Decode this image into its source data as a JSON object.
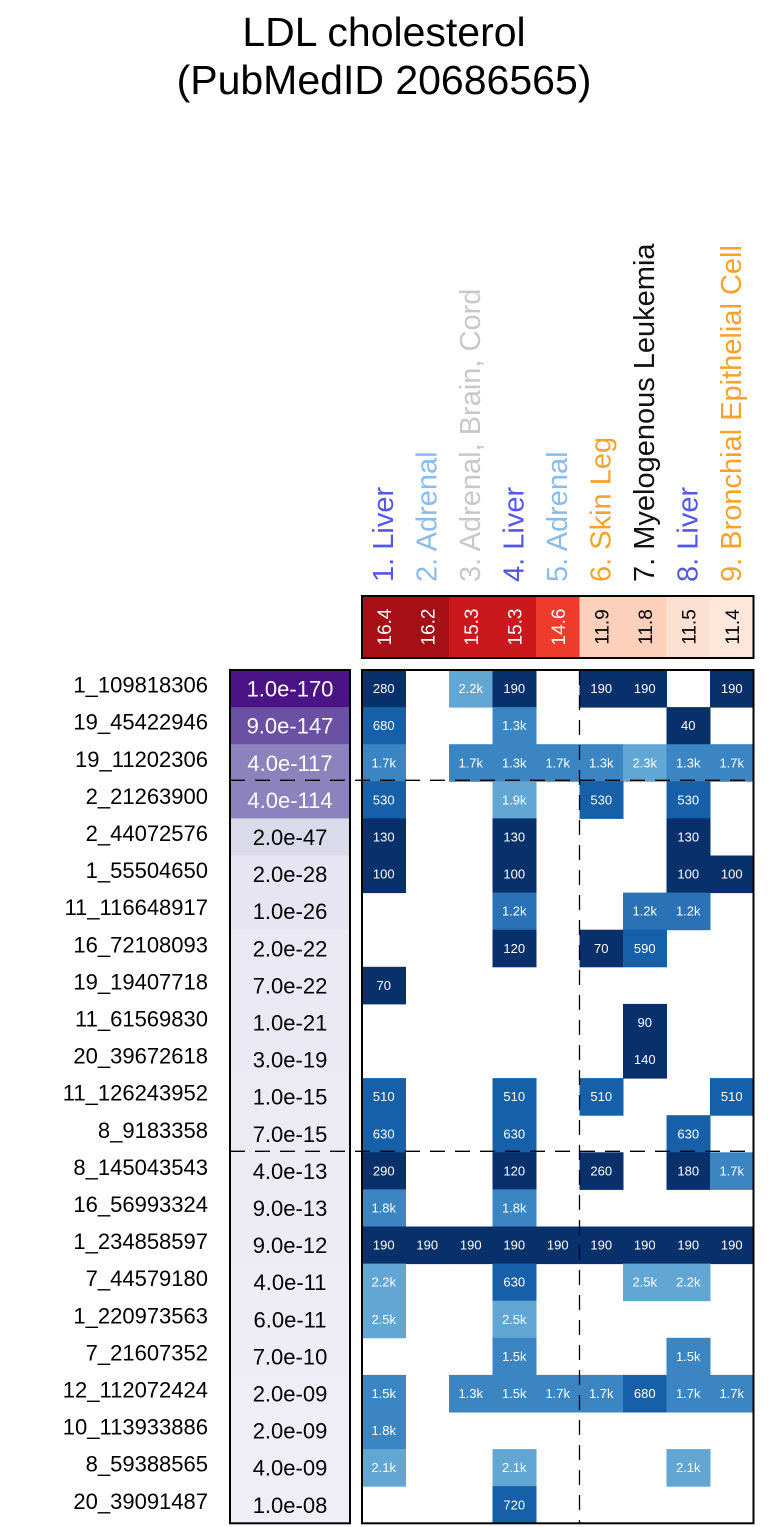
{
  "title_lines": [
    "LDL cholesterol",
    "(PubMedID 20686565)"
  ],
  "chart_data": {
    "type": "heatmap",
    "columns": [
      {
        "label": "1. Liver",
        "color": "#5555ee",
        "enrichment": "16.4",
        "bg": "#a50f15",
        "fg": "#ffffff"
      },
      {
        "label": "2. Adrenal",
        "color": "#88bbee",
        "enrichment": "16.2",
        "bg": "#a50f15",
        "fg": "#ffffff"
      },
      {
        "label": "3. Adrenal, Brain, Cord",
        "color": "#c8c8c8",
        "enrichment": "15.3",
        "bg": "#cb181d",
        "fg": "#ffffff"
      },
      {
        "label": "4. Liver",
        "color": "#5555ee",
        "enrichment": "15.3",
        "bg": "#cb181d",
        "fg": "#ffffff"
      },
      {
        "label": "5. Adrenal",
        "color": "#88bbee",
        "enrichment": "14.6",
        "bg": "#ef3b2c",
        "fg": "#ffffff"
      },
      {
        "label": "6. Skin Leg",
        "color": "#f7a22c",
        "enrichment": "11.9",
        "bg": "#fdd0bc",
        "fg": "#000000"
      },
      {
        "label": "7. Myelogenous Leukemia",
        "color": "#111111",
        "enrichment": "11.8",
        "bg": "#fdd0bc",
        "fg": "#000000"
      },
      {
        "label": "8. Liver",
        "color": "#5555ee",
        "enrichment": "11.5",
        "bg": "#fee0d2",
        "fg": "#000000"
      },
      {
        "label": "9. Bronchial Epithelial Cell",
        "color": "#f7a22c",
        "enrichment": "11.4",
        "bg": "#fee6da",
        "fg": "#000000"
      }
    ],
    "rows": [
      {
        "snp": "1_109818306",
        "pvalue": "1.0e-170",
        "pv_bg": "#4a1486",
        "pv_fg": "#ffffff",
        "cells": [
          "280",
          "",
          "2.2k",
          "190",
          "",
          "190",
          "190",
          "",
          "190"
        ]
      },
      {
        "snp": "19_45422946",
        "pvalue": "9.0e-147",
        "pv_bg": "#6a51a3",
        "pv_fg": "#ffffff",
        "cells": [
          "680",
          "",
          "",
          "1.3k",
          "",
          "",
          "",
          "40",
          ""
        ]
      },
      {
        "snp": "19_11202306",
        "pvalue": "4.0e-117",
        "pv_bg": "#8c83be",
        "pv_fg": "#ffffff",
        "cells": [
          "1.7k",
          "",
          "1.7k",
          "1.3k",
          "1.7k",
          "1.3k",
          "2.3k",
          "1.3k",
          "1.7k"
        ]
      },
      {
        "snp": "2_21263900",
        "pvalue": "4.0e-114",
        "pv_bg": "#8c83be",
        "pv_fg": "#ffffff",
        "cells": [
          "530",
          "",
          "",
          "1.9k",
          "",
          "530",
          "",
          "530",
          ""
        ]
      },
      {
        "snp": "2_44072576",
        "pvalue": "2.0e-47",
        "pv_bg": "#dadaeb",
        "pv_fg": "#000000",
        "cells": [
          "130",
          "",
          "",
          "130",
          "",
          "",
          "",
          "130",
          ""
        ]
      },
      {
        "snp": "1_55504650",
        "pvalue": "2.0e-28",
        "pv_bg": "#e6e5f1",
        "pv_fg": "#000000",
        "cells": [
          "100",
          "",
          "",
          "100",
          "",
          "",
          "",
          "100",
          "100"
        ]
      },
      {
        "snp": "11_116648917",
        "pvalue": "1.0e-26",
        "pv_bg": "#e6e5f1",
        "pv_fg": "#000000",
        "cells": [
          "",
          "",
          "",
          "1.2k",
          "",
          "",
          "1.2k",
          "1.2k",
          ""
        ]
      },
      {
        "snp": "16_72108093",
        "pvalue": "2.0e-22",
        "pv_bg": "#eae9f3",
        "pv_fg": "#000000",
        "cells": [
          "",
          "",
          "",
          "120",
          "",
          "70",
          "590",
          "",
          ""
        ]
      },
      {
        "snp": "19_19407718",
        "pvalue": "7.0e-22",
        "pv_bg": "#eae9f3",
        "pv_fg": "#000000",
        "cells": [
          "70",
          "",
          "",
          "",
          "",
          "",
          "",
          "",
          ""
        ]
      },
      {
        "snp": "11_61569830",
        "pvalue": "1.0e-21",
        "pv_bg": "#eae9f3",
        "pv_fg": "#000000",
        "cells": [
          "",
          "",
          "",
          "",
          "",
          "",
          "90",
          "",
          ""
        ]
      },
      {
        "snp": "20_39672618",
        "pvalue": "3.0e-19",
        "pv_bg": "#ebeaf4",
        "pv_fg": "#000000",
        "cells": [
          "",
          "",
          "",
          "",
          "",
          "",
          "140",
          "",
          ""
        ]
      },
      {
        "snp": "11_126243952",
        "pvalue": "1.0e-15",
        "pv_bg": "#ecebf4",
        "pv_fg": "#000000",
        "cells": [
          "510",
          "",
          "",
          "510",
          "",
          "510",
          "",
          "",
          "510"
        ]
      },
      {
        "snp": "8_9183358",
        "pvalue": "7.0e-15",
        "pv_bg": "#ecebf4",
        "pv_fg": "#000000",
        "cells": [
          "630",
          "",
          "",
          "630",
          "",
          "",
          "",
          "630",
          ""
        ]
      },
      {
        "snp": "8_145043543",
        "pvalue": "4.0e-13",
        "pv_bg": "#edecf5",
        "pv_fg": "#000000",
        "cells": [
          "290",
          "",
          "",
          "120",
          "",
          "260",
          "",
          "180",
          "1.7k"
        ]
      },
      {
        "snp": "16_56993324",
        "pvalue": "9.0e-13",
        "pv_bg": "#edecf5",
        "pv_fg": "#000000",
        "cells": [
          "1.8k",
          "",
          "",
          "1.8k",
          "",
          "",
          "",
          "",
          ""
        ]
      },
      {
        "snp": "1_234858597",
        "pvalue": "9.0e-12",
        "pv_bg": "#edecf5",
        "pv_fg": "#000000",
        "cells": [
          "190",
          "190",
          "190",
          "190",
          "190",
          "190",
          "190",
          "190",
          "190"
        ]
      },
      {
        "snp": "7_44579180",
        "pvalue": "4.0e-11",
        "pv_bg": "#eeedf5",
        "pv_fg": "#000000",
        "cells": [
          "2.2k",
          "",
          "",
          "630",
          "",
          "",
          "2.5k",
          "2.2k",
          ""
        ]
      },
      {
        "snp": "1_220973563",
        "pvalue": "6.0e-11",
        "pv_bg": "#eeedf5",
        "pv_fg": "#000000",
        "cells": [
          "2.5k",
          "",
          "",
          "2.5k",
          "",
          "",
          "",
          "",
          ""
        ]
      },
      {
        "snp": "7_21607352",
        "pvalue": "7.0e-10",
        "pv_bg": "#eeedf5",
        "pv_fg": "#000000",
        "cells": [
          "",
          "",
          "",
          "1.5k",
          "",
          "",
          "",
          "1.5k",
          ""
        ]
      },
      {
        "snp": "12_112072424",
        "pvalue": "2.0e-09",
        "pv_bg": "#efeef6",
        "pv_fg": "#000000",
        "cells": [
          "1.5k",
          "",
          "1.3k",
          "1.5k",
          "1.7k",
          "1.7k",
          "680",
          "1.7k",
          "1.7k"
        ]
      },
      {
        "snp": "10_113933886",
        "pvalue": "2.0e-09",
        "pv_bg": "#efeef6",
        "pv_fg": "#000000",
        "cells": [
          "1.8k",
          "",
          "",
          "",
          "",
          "",
          "",
          "",
          ""
        ]
      },
      {
        "snp": "8_59388565",
        "pvalue": "4.0e-09",
        "pv_bg": "#efeef6",
        "pv_fg": "#000000",
        "cells": [
          "2.1k",
          "",
          "",
          "2.1k",
          "",
          "",
          "",
          "2.1k",
          ""
        ]
      },
      {
        "snp": "20_39091487",
        "pvalue": "1.0e-08",
        "pv_bg": "#efeef6",
        "pv_fg": "#000000",
        "cells": [
          "",
          "",
          "",
          "720",
          "",
          "",
          "",
          "",
          ""
        ]
      }
    ],
    "cell_colors": {
      "1.3k": "#3a85c2",
      "1.5k": "#3a85c2",
      "1.7k": "#3a85c2",
      "1.8k": "#3a85c2",
      "1.9k": "#62a6d4",
      "2.1k": "#62a6d4",
      "2.2k": "#62a6d4",
      "2.3k": "#62a6d4",
      "2.5k": "#62a6d4",
      "1.2k": "#2a72b5",
      "510": "#1560a8",
      "530": "#1560a8",
      "590": "#1560a8",
      "630": "#1560a8",
      "680": "#1560a8",
      "720": "#1560a8",
      "default": "#08306b"
    },
    "cell_text_color": "#ffffff",
    "grid": false
  }
}
